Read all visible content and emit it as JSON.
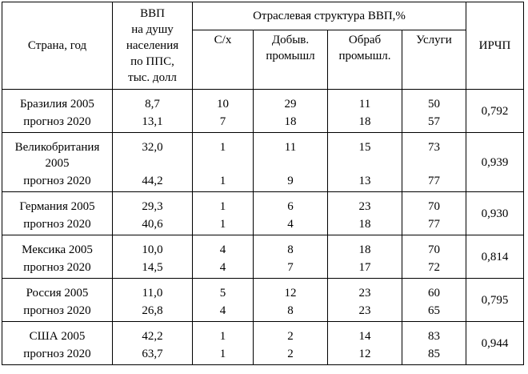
{
  "header": {
    "country_year": "Страна, год",
    "gdp": "ВВП\nна душу\nнаселения\nпо ППС,\nтыс. долл",
    "sector_structure": "Отраслевая структура ВВП,%",
    "agri": "С/х",
    "mining": "Добыв.\nпромышл",
    "manufacturing": "Обраб\nпромышл.",
    "services": "Услуги",
    "hdi": "ИРЧП"
  },
  "rows": [
    {
      "country": "Бразилия 2005",
      "forecast": "прогноз 2020",
      "gdp_2005": "8,7",
      "gdp_2020": "13,1",
      "agri_2005": "10",
      "agri_2020": "7",
      "mining_2005": "29",
      "mining_2020": "18",
      "manuf_2005": "11",
      "manuf_2020": "18",
      "serv_2005": "50",
      "serv_2020": "57",
      "hdi": "0,792"
    },
    {
      "country": "Великобритания\n2005",
      "forecast": "прогноз 2020",
      "gdp_2005": "32,0",
      "gdp_2020": "44,2",
      "agri_2005": "1",
      "agri_2020": "1",
      "mining_2005": "11",
      "mining_2020": "9",
      "manuf_2005": "15",
      "manuf_2020": "13",
      "serv_2005": "73",
      "serv_2020": "77",
      "hdi": "0,939"
    },
    {
      "country": "Германия 2005",
      "forecast": "прогноз 2020",
      "gdp_2005": "29,3",
      "gdp_2020": "40,6",
      "agri_2005": "1",
      "agri_2020": "1",
      "mining_2005": "6",
      "mining_2020": "4",
      "manuf_2005": "23",
      "manuf_2020": "18",
      "serv_2005": "70",
      "serv_2020": "77",
      "hdi": "0,930"
    },
    {
      "country": "Мексика 2005",
      "forecast": "прогноз 2020",
      "gdp_2005": "10,0",
      "gdp_2020": "14,5",
      "agri_2005": "4",
      "agri_2020": "4",
      "mining_2005": "8",
      "mining_2020": "7",
      "manuf_2005": "18",
      "manuf_2020": "17",
      "serv_2005": "70",
      "serv_2020": "72",
      "hdi": "0,814"
    },
    {
      "country": "Россия 2005",
      "forecast": "прогноз 2020",
      "gdp_2005": "11,0",
      "gdp_2020": "26,8",
      "agri_2005": "5",
      "agri_2020": "4",
      "mining_2005": "12",
      "mining_2020": "8",
      "manuf_2005": "23",
      "manuf_2020": "23",
      "serv_2005": "60",
      "serv_2020": "65",
      "hdi": "0,795"
    },
    {
      "country": "США 2005",
      "forecast": "прогноз 2020",
      "gdp_2005": "42,2",
      "gdp_2020": "63,7",
      "agri_2005": "1",
      "agri_2020": "1",
      "mining_2005": "2",
      "mining_2020": "2",
      "manuf_2005": "14",
      "manuf_2020": "12",
      "serv_2005": "83",
      "serv_2020": "85",
      "hdi": "0,944"
    }
  ]
}
